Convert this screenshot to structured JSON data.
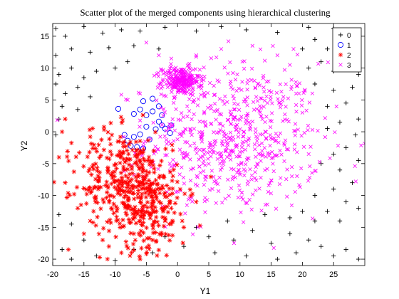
{
  "chart_data": {
    "type": "scatter",
    "title": "Scatter plot of the merged components using hierarchical clustering",
    "xlabel": "Y1",
    "ylabel": "Y2",
    "xlim": [
      -20,
      30
    ],
    "ylim": [
      -21,
      17
    ],
    "xticks": [
      -20,
      -15,
      -10,
      -5,
      0,
      5,
      10,
      15,
      20,
      25
    ],
    "yticks": [
      -20,
      -15,
      -10,
      -5,
      0,
      5,
      10,
      15
    ],
    "grid": false,
    "legend_position": "top-right",
    "series": [
      {
        "name": "0",
        "marker": "plus",
        "color": "#000000",
        "points": [
          [
            -19.5,
            16.2
          ],
          [
            -18,
            15
          ],
          [
            -15,
            16.5
          ],
          [
            -12,
            15.5
          ],
          [
            -9,
            16
          ],
          [
            -6,
            15.8
          ],
          [
            -2,
            16.4
          ],
          [
            3,
            15.8
          ],
          [
            7,
            16.5
          ],
          [
            11,
            16
          ],
          [
            16,
            15.6
          ],
          [
            21,
            16.4
          ],
          [
            25,
            16.2
          ],
          [
            28.5,
            15.8
          ],
          [
            -19.5,
            12
          ],
          [
            -17,
            13
          ],
          [
            -14,
            12.5
          ],
          [
            -11,
            13.2
          ],
          [
            -7,
            13.5
          ],
          [
            -3,
            13
          ],
          [
            -19,
            9
          ],
          [
            -17,
            10
          ],
          [
            -15,
            8.5
          ],
          [
            -13,
            9.5
          ],
          [
            -10,
            10
          ],
          [
            -8,
            11
          ],
          [
            -19.5,
            7.5
          ],
          [
            -18,
            6
          ],
          [
            -16,
            7
          ],
          [
            -14,
            5.5
          ],
          [
            -18.5,
            4
          ],
          [
            -16,
            3.5
          ],
          [
            -19,
            2
          ],
          [
            -19.5,
            -0.5
          ],
          [
            20,
            13
          ],
          [
            22,
            14.5
          ],
          [
            24,
            13
          ],
          [
            26,
            14.5
          ],
          [
            28,
            12.5
          ],
          [
            21,
            10
          ],
          [
            23,
            11
          ],
          [
            25,
            9.5
          ],
          [
            27,
            11
          ],
          [
            29,
            9
          ],
          [
            22,
            7.5
          ],
          [
            25,
            6.5
          ],
          [
            28,
            7
          ],
          [
            24,
            4
          ],
          [
            27,
            4.5
          ],
          [
            29,
            2
          ],
          [
            24,
            0.5
          ],
          [
            26,
            1.5
          ],
          [
            28.5,
            -0.5
          ],
          [
            27,
            -2.5
          ],
          [
            25,
            -3.5
          ],
          [
            29,
            -4.5
          ],
          [
            26,
            -6
          ],
          [
            23,
            -5
          ],
          [
            28,
            -8
          ],
          [
            25,
            -9
          ],
          [
            22,
            -10
          ],
          [
            27,
            -11
          ],
          [
            24,
            -12.5
          ],
          [
            29,
            -12
          ],
          [
            26,
            -14
          ],
          [
            22,
            -14
          ],
          [
            20,
            -12.5
          ],
          [
            18,
            -13.5
          ],
          [
            -19,
            -13
          ],
          [
            -17,
            -14.5
          ],
          [
            -15,
            -17
          ],
          [
            -18.5,
            -18.5
          ],
          [
            -17,
            -20
          ],
          [
            -13,
            -19.5
          ],
          [
            -10,
            -20.2
          ],
          [
            -7,
            -18.5
          ],
          [
            -4,
            -19
          ],
          [
            -2,
            -16.5
          ],
          [
            1,
            -18
          ],
          [
            3,
            -15
          ],
          [
            5,
            -16.5
          ],
          [
            6,
            -19
          ],
          [
            8,
            -14
          ],
          [
            9,
            -17
          ],
          [
            11,
            -19.5
          ],
          [
            12,
            -15.5
          ],
          [
            14,
            -13
          ],
          [
            15,
            -17.5
          ],
          [
            16,
            -20
          ],
          [
            18,
            -16
          ],
          [
            19,
            -19
          ],
          [
            21,
            -17
          ],
          [
            23,
            -18
          ],
          [
            25,
            -19.5
          ],
          [
            27,
            -18.5
          ],
          [
            29,
            -20
          ]
        ]
      },
      {
        "name": "1",
        "marker": "circle",
        "color": "#0000ff",
        "points": [
          [
            -9.5,
            3.6
          ],
          [
            -7,
            2.8
          ],
          [
            -6,
            3.5
          ],
          [
            -5,
            2.6
          ],
          [
            -4,
            3.2
          ],
          [
            -3,
            4
          ],
          [
            -5.5,
            4.8
          ],
          [
            -4,
            5.2
          ],
          [
            -2.5,
            2.6
          ],
          [
            -3,
            1.6
          ],
          [
            -2,
            0.5
          ],
          [
            -1,
            1
          ],
          [
            -1.2,
            -0.2
          ],
          [
            -3.5,
            0.4
          ],
          [
            -5,
            0.8
          ],
          [
            -6,
            -0.4
          ],
          [
            -7,
            -0.8
          ],
          [
            -8,
            -1.4
          ],
          [
            -8.5,
            -0.5
          ],
          [
            -6.5,
            -2.4
          ],
          [
            -5.5,
            -2.6
          ],
          [
            -7.5,
            -2.2
          ],
          [
            -4.5,
            -1.2
          ],
          [
            -2.5,
            1
          ]
        ]
      },
      {
        "name": "2",
        "marker": "asterisk",
        "color": "#ff0000",
        "cluster": {
          "center": [
            -7,
            -9
          ],
          "spread": [
            4,
            4.5
          ],
          "count": 520
        },
        "points": [
          [
            -18,
            -8
          ],
          [
            -19,
            -4
          ],
          [
            -18.5,
            0
          ],
          [
            -18,
            2
          ],
          [
            -16,
            -12
          ],
          [
            -15,
            -16
          ],
          [
            -14,
            -14
          ],
          [
            -12,
            -17
          ],
          [
            -11,
            -18
          ],
          [
            -9,
            -19
          ],
          [
            -7,
            -16
          ],
          [
            -6,
            -20
          ],
          [
            -4,
            -17
          ],
          [
            -2,
            -14
          ],
          [
            -1,
            -12
          ],
          [
            1,
            -15
          ],
          [
            3,
            -11
          ]
        ]
      },
      {
        "name": "3",
        "marker": "x",
        "color": "#ff00ff",
        "cluster": {
          "center": [
            9,
            -1
          ],
          "spread": [
            7,
            6
          ],
          "count": 640
        },
        "dense_cluster": {
          "center": [
            0.5,
            8
          ],
          "spread": [
            1.5,
            1.1
          ],
          "count": 260
        },
        "points": [
          [
            -5,
            14
          ],
          [
            -3,
            12
          ],
          [
            -1,
            11.5
          ],
          [
            3,
            12
          ],
          [
            7,
            13
          ],
          [
            12,
            13.5
          ],
          [
            16,
            12
          ],
          [
            18,
            10.5
          ],
          [
            19,
            6
          ],
          [
            20,
            3
          ],
          [
            -6,
            6
          ],
          [
            -8,
            5
          ]
        ]
      }
    ]
  }
}
